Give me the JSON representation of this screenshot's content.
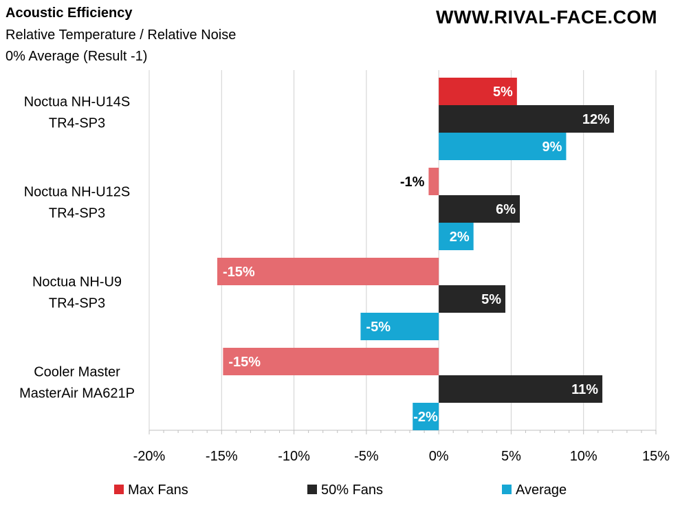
{
  "header": {
    "title": "Acoustic Efficiency",
    "subtitle_1": "Relative Temperature / Relative Noise",
    "subtitle_2": "0% Average (Result -1)",
    "watermark": "WWW.RIVAL-FACE.COM"
  },
  "colors": {
    "max_fans": "#dd2a2f",
    "max_fans_negative": "#e56b70",
    "fans_50": "#262626",
    "fans_50_negative": "#666666",
    "average": "#17a7d4"
  },
  "chart_data": {
    "type": "bar",
    "orientation": "horizontal",
    "categories": [
      [
        "Noctua NH-U14S",
        "TR4-SP3"
      ],
      [
        "Noctua NH-U12S",
        "TR4-SP3"
      ],
      [
        "Noctua NH-U9",
        "TR4-SP3"
      ],
      [
        "Cooler Master",
        "MasterAir MA621P"
      ]
    ],
    "series": [
      {
        "name": "Max Fans",
        "values": [
          5.4,
          -0.7,
          -15.3,
          -14.9
        ],
        "labels": [
          "5%",
          "-1%",
          "-15%",
          "-15%"
        ]
      },
      {
        "name": "50% Fans",
        "values": [
          12.1,
          5.6,
          4.6,
          11.3
        ],
        "labels": [
          "12%",
          "6%",
          "5%",
          "11%"
        ]
      },
      {
        "name": "Average",
        "values": [
          8.8,
          2.4,
          -5.4,
          -1.8
        ],
        "labels": [
          "9%",
          "2%",
          "-5%",
          "-2%"
        ]
      }
    ],
    "xlim": [
      -20,
      15
    ],
    "xticks": [
      -20,
      -15,
      -10,
      -5,
      0,
      5,
      10,
      15
    ],
    "xtick_labels": [
      "-20%",
      "-15%",
      "-10%",
      "-5%",
      "0%",
      "5%",
      "10%",
      "15%"
    ],
    "grid": true,
    "legend_position": "bottom"
  }
}
